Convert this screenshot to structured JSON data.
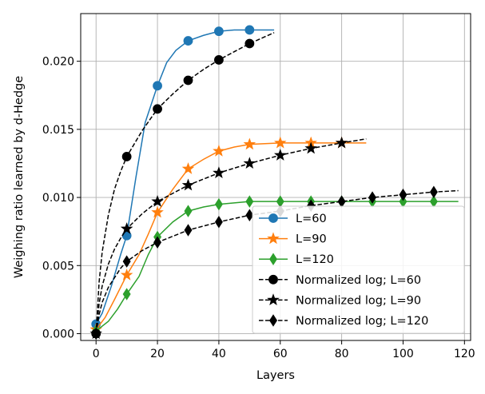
{
  "chart_data": {
    "type": "line",
    "title": "",
    "xlabel": "Layers",
    "ylabel": "Weighing ratio learned by d-Hedge",
    "xlim": [
      -5,
      122
    ],
    "ylim": [
      -0.0005,
      0.0235
    ],
    "xticks": [
      0,
      20,
      40,
      60,
      80,
      100,
      120
    ],
    "yticks": [
      0.0,
      0.005,
      0.01,
      0.015,
      0.02
    ],
    "xtick_labels": [
      "0",
      "20",
      "40",
      "60",
      "80",
      "100",
      "120"
    ],
    "ytick_labels": [
      "0.000",
      "0.005",
      "0.010",
      "0.015",
      "0.020"
    ],
    "grid": true,
    "legend_position": "lower-right",
    "series": [
      {
        "name": "L=60",
        "color": "#1f77b4",
        "style": "solid",
        "marker": "circle",
        "x": [
          0,
          2,
          5,
          8,
          10,
          13,
          16,
          20,
          23,
          26,
          30,
          35,
          40,
          45,
          50,
          55,
          58
        ],
        "y": [
          0.0007,
          0.0015,
          0.0035,
          0.0058,
          0.0072,
          0.0115,
          0.0155,
          0.0182,
          0.0199,
          0.0208,
          0.0215,
          0.0219,
          0.0222,
          0.0223,
          0.0223,
          0.0223,
          0.0223
        ],
        "marker_x": [
          0,
          10,
          20,
          30,
          40,
          50
        ],
        "marker_y": [
          0.0007,
          0.0072,
          0.0182,
          0.0215,
          0.0222,
          0.0223
        ]
      },
      {
        "name": "L=90",
        "color": "#ff7f0e",
        "style": "solid",
        "marker": "star",
        "x": [
          0,
          3,
          6,
          10,
          14,
          17,
          20,
          25,
          30,
          35,
          40,
          45,
          50,
          60,
          70,
          80,
          88
        ],
        "y": [
          0.0003,
          0.0012,
          0.0025,
          0.0043,
          0.0058,
          0.0073,
          0.0089,
          0.0106,
          0.0121,
          0.0128,
          0.0134,
          0.0137,
          0.0139,
          0.014,
          0.014,
          0.014,
          0.014
        ],
        "marker_x": [
          0,
          10,
          20,
          30,
          40,
          50,
          60,
          70,
          80
        ],
        "marker_y": [
          0.0003,
          0.0043,
          0.0089,
          0.0121,
          0.0134,
          0.0139,
          0.014,
          0.014,
          0.014
        ]
      },
      {
        "name": "L=120",
        "color": "#2ca02c",
        "style": "solid",
        "marker": "diamond",
        "x": [
          0,
          4,
          7,
          10,
          14,
          17,
          20,
          25,
          30,
          35,
          40,
          45,
          50,
          60,
          70,
          80,
          90,
          100,
          110,
          118
        ],
        "y": [
          0.0002,
          0.0009,
          0.0018,
          0.0029,
          0.0042,
          0.0058,
          0.0071,
          0.0082,
          0.009,
          0.0093,
          0.0095,
          0.0096,
          0.0097,
          0.0097,
          0.0097,
          0.0097,
          0.0097,
          0.0097,
          0.0097,
          0.0097
        ],
        "marker_x": [
          0,
          10,
          20,
          30,
          40,
          50,
          60,
          70,
          80,
          90,
          100,
          110
        ],
        "marker_y": [
          0.0002,
          0.0029,
          0.0071,
          0.009,
          0.0095,
          0.0097,
          0.0097,
          0.0097,
          0.0097,
          0.0097,
          0.0097,
          0.0097
        ]
      },
      {
        "name": "Normalized log; L=60",
        "color": "#000000",
        "style": "dashed",
        "marker": "circle",
        "x": [
          0,
          1,
          2,
          4,
          6,
          8,
          10,
          15,
          20,
          25,
          30,
          35,
          40,
          45,
          50,
          55,
          58
        ],
        "y": [
          0.0,
          0.0038,
          0.006,
          0.0087,
          0.0106,
          0.0119,
          0.013,
          0.0149,
          0.0165,
          0.0176,
          0.0186,
          0.0194,
          0.0201,
          0.0207,
          0.0213,
          0.0218,
          0.0221
        ],
        "marker_x": [
          0,
          10,
          20,
          30,
          40,
          50
        ],
        "marker_y": [
          0.0,
          0.013,
          0.0165,
          0.0186,
          0.0201,
          0.0213
        ]
      },
      {
        "name": "Normalized log; L=90",
        "color": "#000000",
        "style": "dashed",
        "marker": "star",
        "x": [
          0,
          1,
          2,
          4,
          6,
          8,
          10,
          15,
          20,
          30,
          40,
          50,
          60,
          70,
          80,
          88
        ],
        "y": [
          0.0,
          0.0022,
          0.0035,
          0.0051,
          0.0062,
          0.007,
          0.0077,
          0.0088,
          0.0097,
          0.0109,
          0.0118,
          0.0125,
          0.0131,
          0.0136,
          0.014,
          0.0143
        ],
        "marker_x": [
          0,
          10,
          20,
          30,
          40,
          50,
          60,
          70,
          80
        ],
        "marker_y": [
          0.0,
          0.0077,
          0.0097,
          0.0109,
          0.0118,
          0.0125,
          0.0131,
          0.0136,
          0.014
        ]
      },
      {
        "name": "Normalized log; L=120",
        "color": "#000000",
        "style": "dashed",
        "marker": "diamond",
        "x": [
          0,
          1,
          2,
          4,
          6,
          8,
          10,
          15,
          20,
          30,
          40,
          50,
          60,
          70,
          80,
          90,
          100,
          110,
          118
        ],
        "y": [
          0.0,
          0.0014,
          0.0023,
          0.0034,
          0.0041,
          0.0048,
          0.0053,
          0.0061,
          0.0067,
          0.0076,
          0.0082,
          0.0087,
          0.009,
          0.0094,
          0.0097,
          0.01,
          0.0102,
          0.0104,
          0.0105
        ],
        "marker_x": [
          0,
          10,
          20,
          30,
          40,
          50,
          60,
          70,
          80,
          90,
          100,
          110
        ],
        "marker_y": [
          0.0,
          0.0053,
          0.0067,
          0.0076,
          0.0082,
          0.0087,
          0.009,
          0.0094,
          0.0097,
          0.01,
          0.0102,
          0.0104
        ]
      }
    ]
  }
}
